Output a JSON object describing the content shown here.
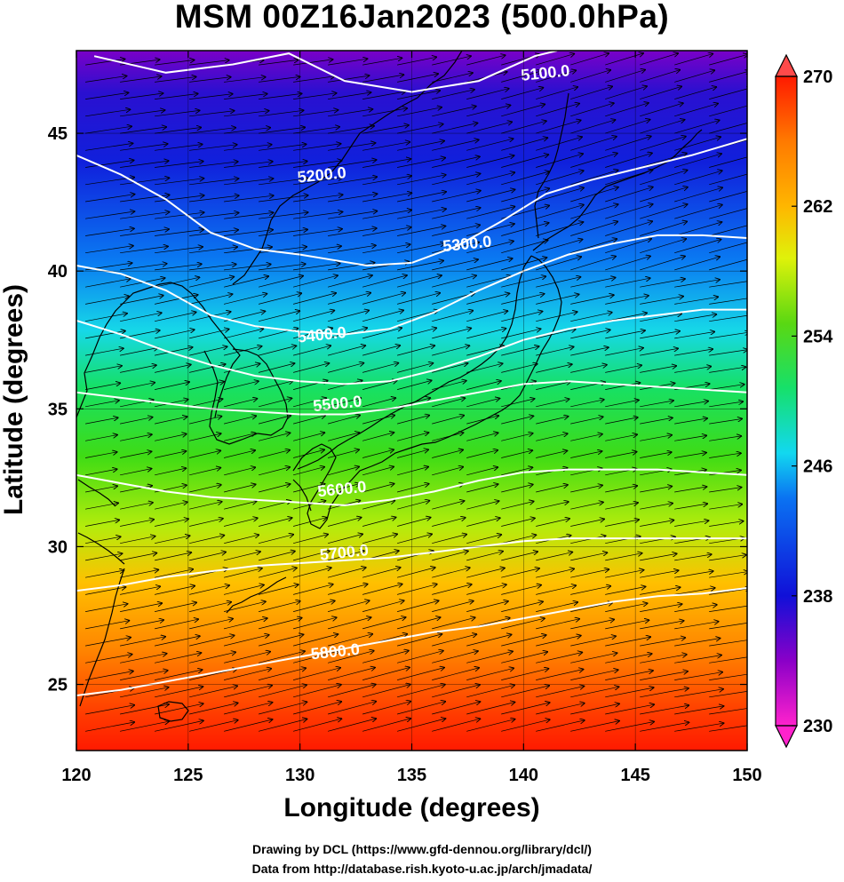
{
  "title": "MSM 00Z16Jan2023 (500.0hPa)",
  "x_axis": {
    "label": "Longitude (degrees)",
    "ticks": [
      "120",
      "125",
      "130",
      "135",
      "140",
      "145",
      "150"
    ]
  },
  "y_axis": {
    "label": "Latitude  (degrees)",
    "ticks": [
      "25",
      "30",
      "35",
      "40",
      "45"
    ]
  },
  "colorbar": {
    "min": 230,
    "max": 270,
    "tick_labels": [
      "270",
      "262",
      "254",
      "246",
      "238",
      "230"
    ],
    "tick_values": [
      270,
      262,
      254,
      246,
      238,
      230
    ],
    "colors": [
      "#ff22cc",
      "#7a00c8",
      "#1010d8",
      "#0a72f2",
      "#12d8f0",
      "#16e06a",
      "#5ad812",
      "#dff20a",
      "#ffb600",
      "#ff7a00",
      "#ff1a00"
    ]
  },
  "contours": {
    "color": "#ffffff",
    "levels": [
      {
        "label": "5100.0",
        "points": [
          [
            120.8,
            47.8
          ],
          [
            124,
            47.2
          ],
          [
            127,
            47.5
          ],
          [
            129.5,
            47.9
          ],
          [
            132,
            46.9
          ],
          [
            135,
            46.5
          ],
          [
            138,
            46.9
          ],
          [
            140.5,
            47.8
          ],
          [
            141.5,
            48.0
          ]
        ],
        "label_at": [
          141.0,
          47.0
        ]
      },
      {
        "label": "5200.0",
        "points": [
          [
            120,
            44.2
          ],
          [
            122,
            43.5
          ],
          [
            124,
            42.6
          ],
          [
            126,
            41.4
          ],
          [
            128,
            40.8
          ],
          [
            130,
            40.6
          ],
          [
            131.5,
            40.4
          ],
          [
            133,
            40.2
          ],
          [
            135,
            40.3
          ],
          [
            137,
            40.9
          ],
          [
            139,
            41.8
          ],
          [
            141,
            42.8
          ],
          [
            143,
            43.3
          ],
          [
            145,
            43.7
          ],
          [
            147.5,
            44.2
          ],
          [
            150,
            44.8
          ]
        ],
        "label_at": [
          131.0,
          43.3
        ]
      },
      {
        "label": "5300.0",
        "points": [
          [
            120,
            40.2
          ],
          [
            122,
            39.9
          ],
          [
            124,
            39.3
          ],
          [
            126,
            38.4
          ],
          [
            128,
            38.0
          ],
          [
            130,
            37.8
          ],
          [
            132,
            37.7
          ],
          [
            134,
            37.9
          ],
          [
            136,
            38.5
          ],
          [
            138,
            39.3
          ],
          [
            140,
            40.0
          ],
          [
            142,
            40.6
          ],
          [
            144,
            41.0
          ],
          [
            146,
            41.3
          ],
          [
            148,
            41.3
          ],
          [
            150,
            41.2
          ]
        ],
        "label_at": [
          137.5,
          40.8
        ]
      },
      {
        "label": "5400.0",
        "points": [
          [
            120,
            38.2
          ],
          [
            122,
            37.7
          ],
          [
            124,
            37.1
          ],
          [
            126,
            36.6
          ],
          [
            128,
            36.2
          ],
          [
            130,
            36.0
          ],
          [
            132,
            35.9
          ],
          [
            134,
            36.0
          ],
          [
            136,
            36.4
          ],
          [
            138,
            36.9
          ],
          [
            140,
            37.5
          ],
          [
            142,
            37.9
          ],
          [
            144,
            38.2
          ],
          [
            146,
            38.4
          ],
          [
            148,
            38.6
          ],
          [
            150,
            38.6
          ]
        ],
        "label_at": [
          131.0,
          37.5
        ]
      },
      {
        "label": "5500.0",
        "points": [
          [
            120,
            35.6
          ],
          [
            122,
            35.4
          ],
          [
            124,
            35.2
          ],
          [
            126,
            35.0
          ],
          [
            128,
            34.9
          ],
          [
            130,
            34.8
          ],
          [
            132,
            34.8
          ],
          [
            134,
            35.0
          ],
          [
            136,
            35.3
          ],
          [
            138,
            35.6
          ],
          [
            140,
            35.9
          ],
          [
            142,
            36.0
          ],
          [
            144,
            35.9
          ],
          [
            146,
            35.8
          ],
          [
            148,
            35.7
          ],
          [
            150,
            35.6
          ]
        ],
        "label_at": [
          131.7,
          35.0
        ]
      },
      {
        "label": "5600.0",
        "points": [
          [
            120,
            32.6
          ],
          [
            122,
            32.3
          ],
          [
            124,
            32.0
          ],
          [
            126,
            31.8
          ],
          [
            128,
            31.7
          ],
          [
            130,
            31.6
          ],
          [
            132,
            31.5
          ],
          [
            134,
            31.7
          ],
          [
            136,
            32.0
          ],
          [
            138,
            32.4
          ],
          [
            140,
            32.7
          ],
          [
            142,
            32.8
          ],
          [
            144,
            32.8
          ],
          [
            146,
            32.8
          ],
          [
            148,
            32.7
          ],
          [
            150,
            32.6
          ]
        ],
        "label_at": [
          131.9,
          31.9
        ]
      },
      {
        "label": "5700.0",
        "points": [
          [
            120,
            28.4
          ],
          [
            122,
            28.6
          ],
          [
            124,
            28.9
          ],
          [
            126,
            29.1
          ],
          [
            128,
            29.3
          ],
          [
            130,
            29.4
          ],
          [
            132,
            29.5
          ],
          [
            134,
            29.6
          ],
          [
            136,
            29.8
          ],
          [
            138,
            30.0
          ],
          [
            140,
            30.2
          ],
          [
            142,
            30.3
          ],
          [
            144,
            30.3
          ],
          [
            146,
            30.3
          ],
          [
            148,
            30.3
          ],
          [
            150,
            30.3
          ]
        ],
        "label_at": [
          132.0,
          29.6
        ]
      },
      {
        "label": "5800.0",
        "points": [
          [
            120,
            24.6
          ],
          [
            122,
            24.8
          ],
          [
            124,
            25.1
          ],
          [
            126,
            25.4
          ],
          [
            128,
            25.7
          ],
          [
            130,
            26.0
          ],
          [
            132,
            26.3
          ],
          [
            134,
            26.6
          ],
          [
            136,
            26.9
          ],
          [
            138,
            27.1
          ],
          [
            140,
            27.4
          ],
          [
            142,
            27.7
          ],
          [
            144,
            28.0
          ],
          [
            146,
            28.2
          ],
          [
            148,
            28.3
          ],
          [
            150,
            28.5
          ]
        ],
        "label_at": [
          131.6,
          26.0
        ]
      }
    ]
  },
  "credits": {
    "line1": "Drawing by DCL (https://www.gfd-dennou.org/library/dcl/)",
    "line2": "Data from http://database.rish.kyoto-u.ac.jp/arch/jmadata/"
  }
}
